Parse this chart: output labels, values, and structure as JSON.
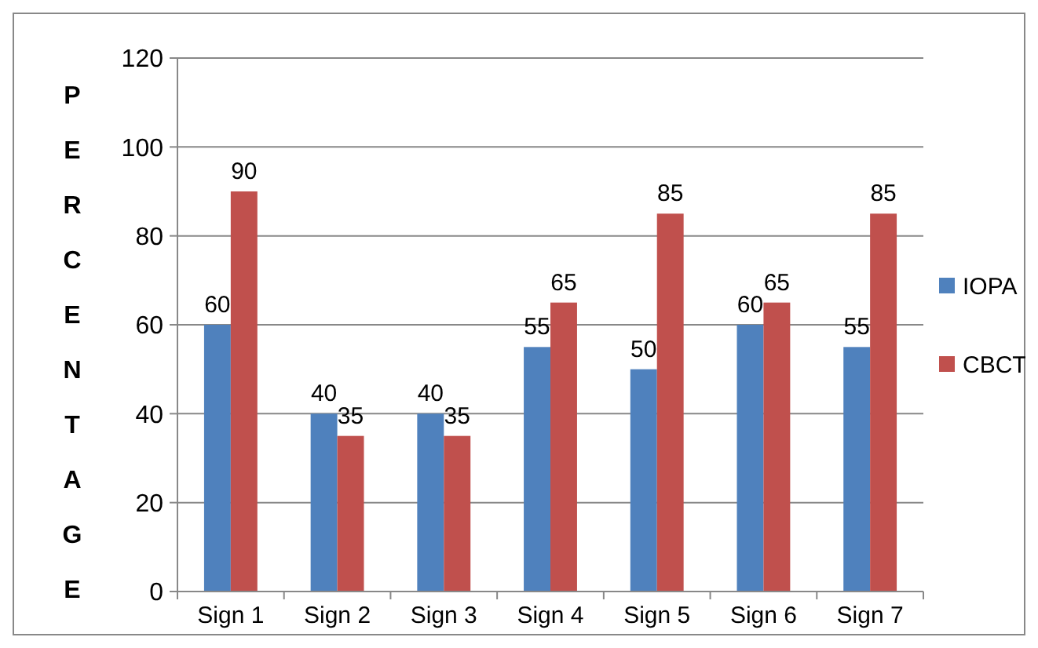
{
  "chart_data": {
    "type": "bar",
    "ylabel": "PERCENTAGE",
    "categories": [
      "Sign 1",
      "Sign 2",
      "Sign 3",
      "Sign 4",
      "Sign 5",
      "Sign 6",
      "Sign 7"
    ],
    "series": [
      {
        "name": "IOPA",
        "color": "#4f81bd",
        "values": [
          60,
          40,
          40,
          55,
          50,
          60,
          55
        ]
      },
      {
        "name": "CBCT",
        "color": "#c0504d",
        "values": [
          90,
          35,
          35,
          65,
          85,
          65,
          85
        ]
      }
    ],
    "ylim": [
      0,
      120
    ],
    "yticks": [
      0,
      20,
      40,
      60,
      80,
      100,
      120
    ],
    "grid": "y",
    "legend": "right",
    "data_labels": true
  }
}
